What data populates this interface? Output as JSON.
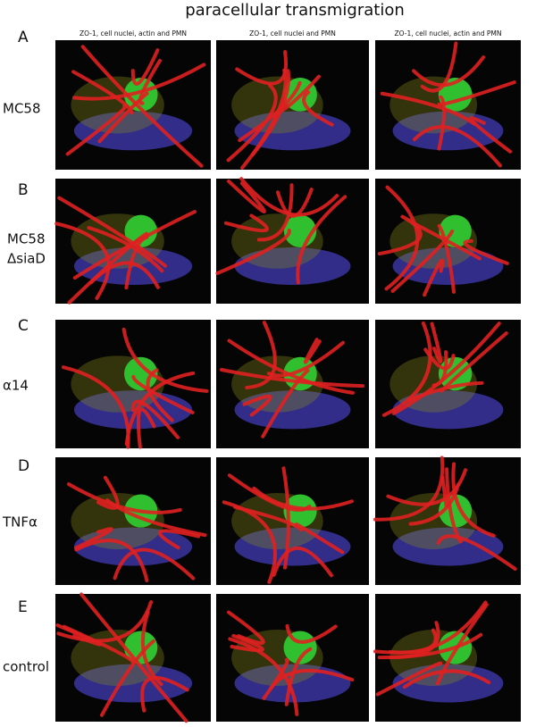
{
  "title": "paracellular transmigration",
  "columns": [
    "ZO-1, cell nuclei, actin and PMN",
    "ZO-1, cell nuclei and PMN",
    "ZO-1, cell nuclei, actin and PMN"
  ],
  "rows": [
    {
      "letter": "A",
      "label_lines": [
        "MC58"
      ]
    },
    {
      "letter": "B",
      "label_lines": [
        "MC58",
        "ΔsiaD"
      ]
    },
    {
      "letter": "C",
      "label_lines": [
        "α14"
      ]
    },
    {
      "letter": "D",
      "label_lines": [
        "TNFα"
      ]
    },
    {
      "letter": "E",
      "label_lines": [
        "control"
      ]
    }
  ]
}
